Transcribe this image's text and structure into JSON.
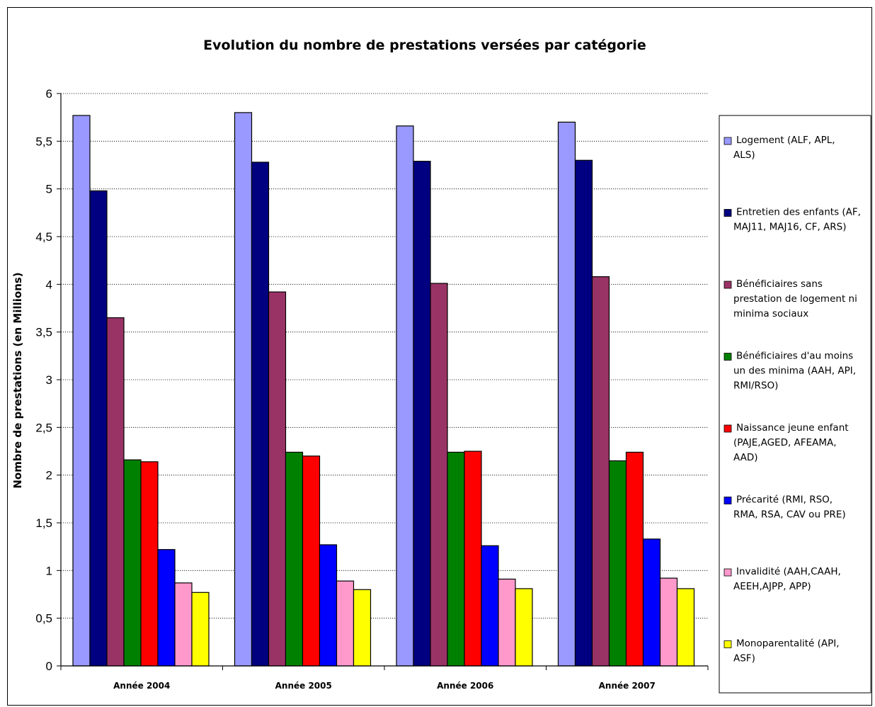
{
  "chart_data": {
    "type": "bar",
    "title": "Evolution du nombre de prestations versées par catégorie",
    "xlabel": "",
    "ylabel": "Nombre de prestations (en Millions)",
    "ylim": [
      0,
      6
    ],
    "yticks": [
      "0",
      "0,5",
      "1",
      "1,5",
      "2",
      "2,5",
      "3",
      "3,5",
      "4",
      "4,5",
      "5",
      "5,5",
      "6"
    ],
    "grid": "horizontal-dotted",
    "legend_position": "right",
    "categories": [
      "Année 2004",
      "Année 2005",
      "Année 2006",
      "Année 2007"
    ],
    "series": [
      {
        "name": "Logement (ALF, APL, ALS)",
        "legend_lines": [
          "Logement (ALF, APL,",
          "ALS)"
        ],
        "color": "#9999FF",
        "values": [
          5.77,
          5.8,
          5.66,
          5.7
        ]
      },
      {
        "name": "Entretien des enfants (AF, MAJ11, MAJ16, CF, ARS)",
        "legend_lines": [
          "Entretien des enfants (AF,",
          "MAJ11, MAJ16, CF, ARS)"
        ],
        "color": "#000080",
        "values": [
          4.98,
          5.28,
          5.29,
          5.3
        ]
      },
      {
        "name": "Bénéficiaires sans prestation de logement ni minima sociaux",
        "legend_lines": [
          "Bénéficiaires sans",
          "prestation de logement ni",
          "minima sociaux"
        ],
        "color": "#993366",
        "values": [
          3.65,
          3.92,
          4.01,
          4.08
        ]
      },
      {
        "name": "Bénéficiaires d'au moins un des minima (AAH, API, RMI/RSO)",
        "legend_lines": [
          "Bénéficiaires d'au moins",
          "un des minima (AAH, API,",
          "RMI/RSO)"
        ],
        "color": "#008000",
        "values": [
          2.16,
          2.24,
          2.24,
          2.15
        ]
      },
      {
        "name": "Naissance jeune enfant (PAJE,AGED, AFEAMA, AAD)",
        "legend_lines": [
          "Naissance jeune enfant",
          "(PAJE,AGED, AFEAMA,",
          "AAD)"
        ],
        "color": "#FF0000",
        "values": [
          2.14,
          2.2,
          2.25,
          2.24
        ]
      },
      {
        "name": "Précarité (RMI, RSO, RMA, RSA, CAV ou PRE)",
        "legend_lines": [
          "Précarité (RMI, RSO,",
          "RMA, RSA, CAV ou PRE)"
        ],
        "color": "#0000FF",
        "values": [
          1.22,
          1.27,
          1.26,
          1.33
        ]
      },
      {
        "name": "Invalidité (AAH,CAAH, AEEH,AJPP, APP)",
        "legend_lines": [
          "Invalidité (AAH,CAAH,",
          "AEEH,AJPP, APP)"
        ],
        "color": "#FF99CC",
        "values": [
          0.87,
          0.89,
          0.91,
          0.92
        ]
      },
      {
        "name": "Monoparentalité (API, ASF)",
        "legend_lines": [
          "Monoparentalité (API,",
          "ASF)"
        ],
        "color": "#FFFF00",
        "values": [
          0.77,
          0.8,
          0.81,
          0.81
        ]
      }
    ]
  }
}
